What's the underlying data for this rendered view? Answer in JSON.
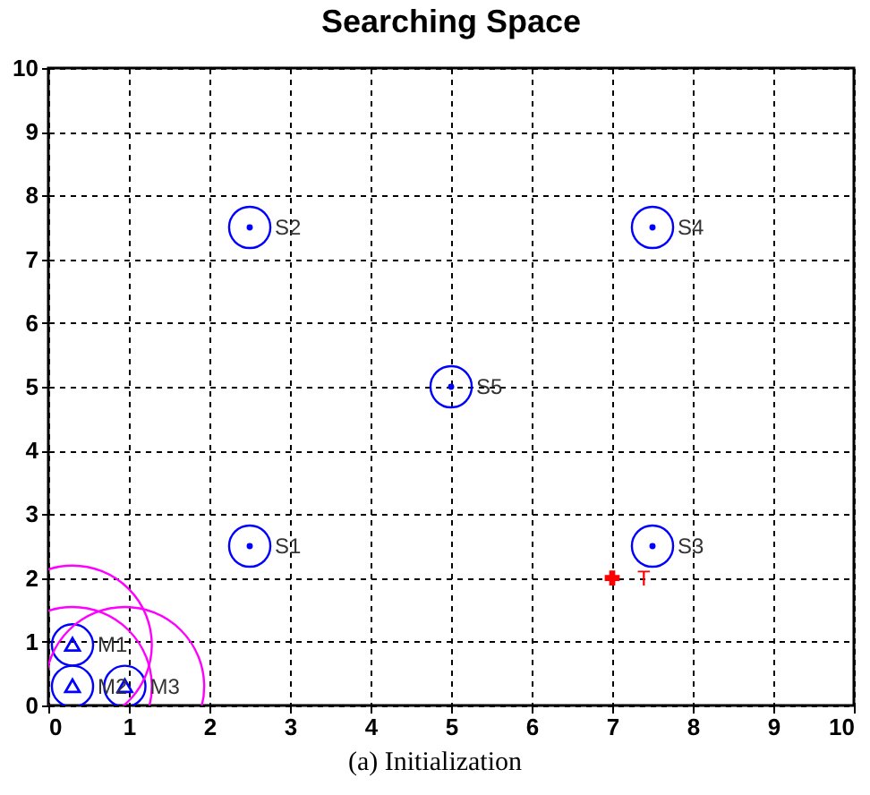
{
  "chart_data": {
    "type": "scatter",
    "title": "Searching Space",
    "xlim": [
      0,
      10
    ],
    "ylim": [
      0,
      10
    ],
    "xticks": [
      0,
      1,
      2,
      3,
      4,
      5,
      6,
      7,
      8,
      9,
      10
    ],
    "yticks": [
      0,
      1,
      2,
      3,
      4,
      5,
      6,
      7,
      8,
      9,
      10
    ],
    "grid": true,
    "annotations": [
      "(a) Initialization"
    ],
    "series": [
      {
        "type": "scatter",
        "marker": "circle",
        "color": "#0000ff",
        "x": [
          2.5,
          2.5,
          7.5,
          7.5,
          5
        ],
        "values": [
          2.5,
          7.5,
          2.5,
          7.5,
          5
        ],
        "value_labels": [
          "S1",
          "S2",
          "S3",
          "S4",
          "S5"
        ]
      },
      {
        "type": "scatter",
        "marker": "triangle",
        "color": "#0000ff",
        "x": [
          0.3,
          0.3,
          0.95
        ],
        "values": [
          0.95,
          0.3,
          0.3
        ],
        "value_labels": [
          "M1",
          "M2",
          "M3"
        ]
      },
      {
        "type": "scatter",
        "marker": "cross",
        "color": "#ff0000",
        "x": [
          7
        ],
        "values": [
          2
        ],
        "value_labels": [
          "T"
        ]
      }
    ]
  }
}
